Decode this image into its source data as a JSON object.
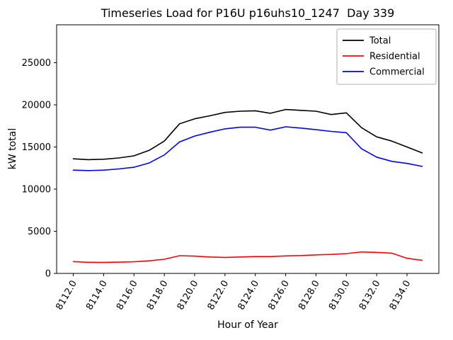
{
  "chart_data": {
    "type": "line",
    "title": "Timeseries Load for P16U p16uhs10_1247  Day 339",
    "xlabel": "Hour of Year",
    "ylabel": "kW total",
    "xlim": [
      8110.9,
      8136.1
    ],
    "ylim": [
      0,
      29500
    ],
    "grid": false,
    "legend_position": "upper right",
    "xtick_values": [
      8112,
      8114,
      8116,
      8118,
      8120,
      8122,
      8124,
      8126,
      8128,
      8130,
      8132,
      8134
    ],
    "xtick_labels": [
      "8112.0",
      "8114.0",
      "8116.0",
      "8118.0",
      "8120.0",
      "8122.0",
      "8124.0",
      "8126.0",
      "8128.0",
      "8130.0",
      "8132.0",
      "8134.0"
    ],
    "ytick_values": [
      0,
      5000,
      10000,
      15000,
      20000,
      25000
    ],
    "ytick_labels": [
      "0",
      "5000",
      "10000",
      "15000",
      "20000",
      "25000"
    ],
    "x": [
      8112,
      8113,
      8114,
      8115,
      8116,
      8117,
      8118,
      8119,
      8120,
      8121,
      8122,
      8123,
      8124,
      8125,
      8126,
      8127,
      8128,
      8129,
      8130,
      8131,
      8132,
      8133,
      8134,
      8135
    ],
    "series": [
      {
        "name": "Total",
        "color": "#000000",
        "values": [
          13600,
          13500,
          13550,
          13700,
          13950,
          14600,
          15700,
          17750,
          18350,
          18700,
          19100,
          19250,
          19300,
          19000,
          19450,
          19350,
          19250,
          18850,
          19050,
          17300,
          16200,
          15700,
          15000,
          14300
        ]
      },
      {
        "name": "Residential",
        "color": "#ff0000",
        "values": [
          1400,
          1320,
          1310,
          1340,
          1380,
          1500,
          1680,
          2100,
          2050,
          1950,
          1900,
          1950,
          2000,
          2000,
          2080,
          2120,
          2200,
          2250,
          2350,
          2550,
          2500,
          2400,
          1800,
          1550
        ]
      },
      {
        "name": "Commercial",
        "color": "#0000ff",
        "values": [
          12250,
          12200,
          12250,
          12400,
          12600,
          13100,
          14050,
          15600,
          16300,
          16750,
          17150,
          17350,
          17350,
          17000,
          17400,
          17250,
          17050,
          16850,
          16700,
          14800,
          13800,
          13300,
          13050,
          12700
        ]
      }
    ]
  }
}
